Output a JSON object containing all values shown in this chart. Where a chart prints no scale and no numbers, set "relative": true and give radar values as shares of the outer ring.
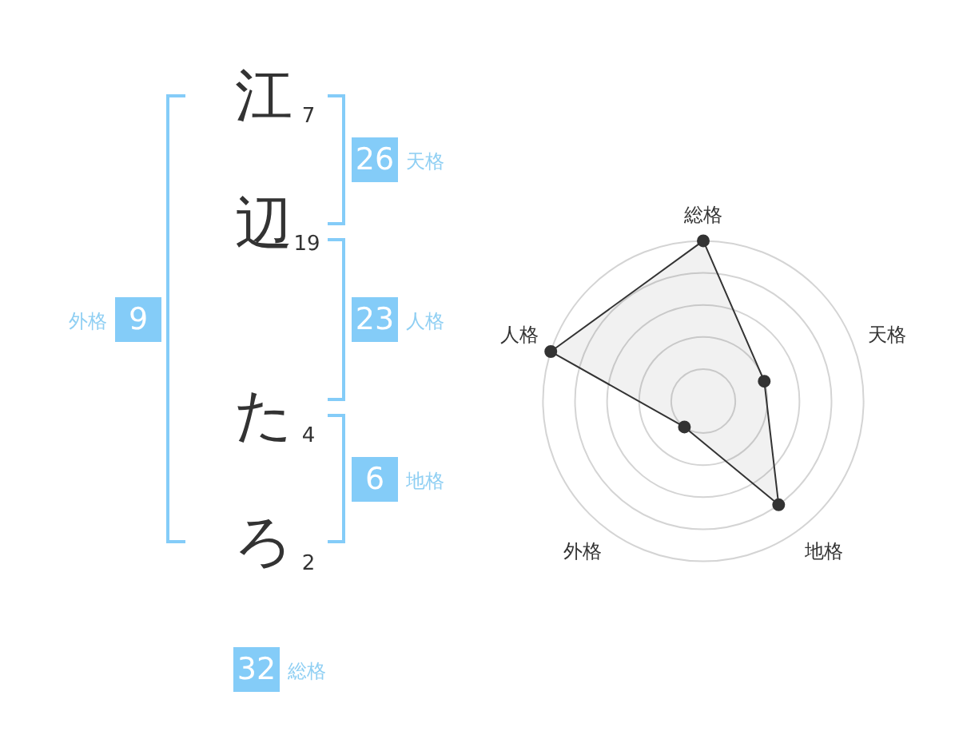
{
  "chart_data": {
    "type": "radar",
    "categories": [
      "総格",
      "天格",
      "地格",
      "外格",
      "人格"
    ],
    "values": [
      1,
      0.4,
      0.8,
      0.2,
      1
    ],
    "color": "#333333",
    "relative": true,
    "grid": true,
    "marker": "circle",
    "legend": false,
    "annotations": [
      "江",
      "7",
      "辺",
      "19",
      "た",
      "4",
      "ろ",
      "2",
      "9",
      "外格",
      "26",
      "天格",
      "23",
      "人格",
      "6",
      "地格",
      "32",
      "総格"
    ]
  }
}
